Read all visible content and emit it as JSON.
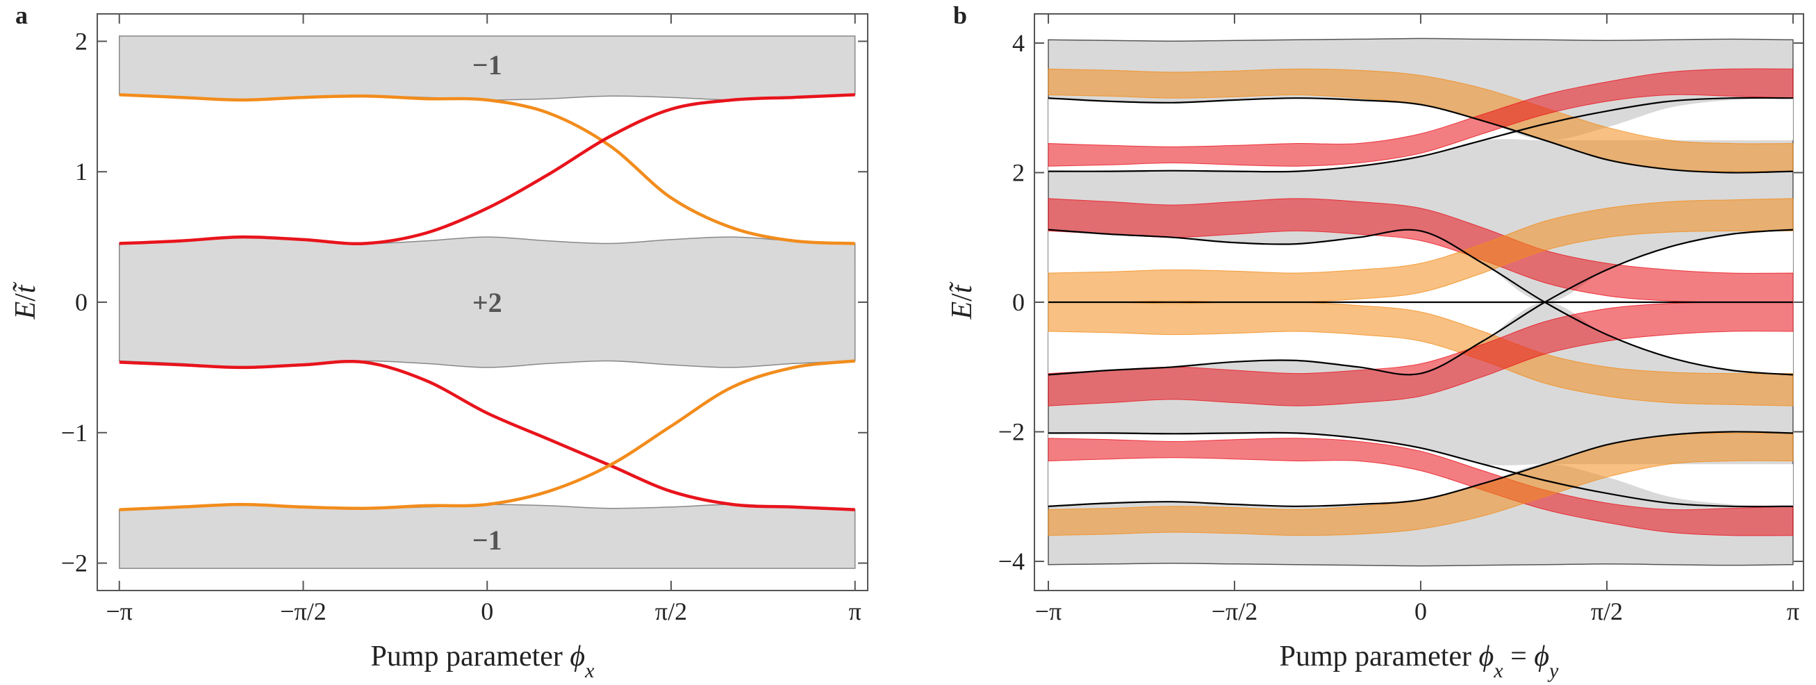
{
  "chart_data": [
    {
      "type": "line",
      "panel_label": "a",
      "x_label": [
        {
          "t": "Pump parameter "
        },
        {
          "t": "ϕ",
          "i": true
        },
        {
          "t": "x",
          "sub": true
        }
      ],
      "y_label": [
        {
          "t": "E",
          "i": true
        },
        {
          "t": "/"
        },
        {
          "t": "t̃",
          "i": true
        }
      ],
      "annotations": [
        "−1",
        "+2",
        "−1"
      ],
      "xlim": [
        -3.33,
        3.25
      ],
      "ylim": [
        -2.21,
        2.21
      ],
      "xticks": [
        {
          "value": -3.1416,
          "label": "−π"
        },
        {
          "value": -1.5708,
          "label": "−π/2"
        },
        0,
        {
          "value": 1.5708,
          "label": "π/2"
        },
        {
          "value": 3.1416,
          "label": "π"
        }
      ],
      "yticks": [
        {
          "value": -2,
          "label": "−2"
        },
        {
          "value": -1,
          "label": "−1"
        },
        0,
        1,
        2
      ],
      "x": [
        -3.1416,
        -2.618,
        -2.0944,
        -1.5708,
        -1.0472,
        -0.5236,
        0,
        0.5236,
        1.0472,
        1.5708,
        2.0944,
        2.618,
        3.1416
      ],
      "bands": [
        {
          "color": "#d9d9d9",
          "upper": [
            2.04,
            2.04,
            2.04,
            2.04,
            2.04,
            2.04,
            2.04,
            2.04,
            2.04,
            2.04,
            2.04,
            2.04,
            2.04
          ],
          "lower": [
            1.59,
            1.57,
            1.55,
            1.57,
            1.58,
            1.57,
            1.55,
            1.56,
            1.58,
            1.57,
            1.55,
            1.57,
            1.59
          ]
        },
        {
          "color": "#d9d9d9",
          "upper": [
            0.45,
            0.47,
            0.5,
            0.48,
            0.45,
            0.47,
            0.5,
            0.47,
            0.45,
            0.48,
            0.5,
            0.47,
            0.45
          ],
          "lower": [
            -0.45,
            -0.47,
            -0.5,
            -0.48,
            -0.45,
            -0.47,
            -0.5,
            -0.47,
            -0.45,
            -0.48,
            -0.5,
            -0.47,
            -0.45
          ]
        },
        {
          "color": "#d9d9d9",
          "upper": [
            -1.59,
            -1.57,
            -1.55,
            -1.57,
            -1.58,
            -1.57,
            -1.55,
            -1.56,
            -1.58,
            -1.57,
            -1.55,
            -1.57,
            -1.59
          ],
          "lower": [
            -2.04,
            -2.04,
            -2.04,
            -2.04,
            -2.04,
            -2.04,
            -2.04,
            -2.04,
            -2.04,
            -2.04,
            -2.04,
            -2.04,
            -2.04
          ]
        }
      ],
      "series": [
        {
          "color": "#f28c1c",
          "values": [
            1.59,
            1.57,
            1.55,
            1.57,
            1.58,
            1.56,
            1.55,
            1.45,
            1.2,
            0.8,
            0.57,
            0.47,
            0.45
          ]
        },
        {
          "color": "#e8141c",
          "values": [
            0.45,
            0.47,
            0.5,
            0.48,
            0.45,
            0.53,
            0.72,
            0.98,
            1.27,
            1.48,
            1.55,
            1.57,
            1.59
          ]
        },
        {
          "color": "#e8141c",
          "values": [
            -0.46,
            -0.48,
            -0.5,
            -0.48,
            -0.46,
            -0.6,
            -0.85,
            -1.05,
            -1.25,
            -1.45,
            -1.55,
            -1.57,
            -1.59
          ]
        },
        {
          "color": "#f28c1c",
          "values": [
            -1.59,
            -1.57,
            -1.55,
            -1.57,
            -1.58,
            -1.56,
            -1.55,
            -1.45,
            -1.25,
            -0.95,
            -0.65,
            -0.5,
            -0.45
          ]
        }
      ]
    },
    {
      "type": "line",
      "panel_label": "b",
      "x_label": [
        {
          "t": "Pump parameter "
        },
        {
          "t": "ϕ",
          "i": true
        },
        {
          "t": "x",
          "sub": true
        },
        {
          "t": " = "
        },
        {
          "t": "ϕ",
          "i": true
        },
        {
          "t": "y",
          "sub": true
        }
      ],
      "y_label": [
        {
          "t": "E",
          "i": true
        },
        {
          "t": "/"
        },
        {
          "t": "t̃",
          "i": true
        }
      ],
      "annotations": [],
      "xlim": [
        -3.259,
        3.23
      ],
      "ylim": [
        -4.45,
        4.45
      ],
      "xticks": [
        {
          "value": -3.1416,
          "label": "−π"
        },
        {
          "value": -1.5708,
          "label": "−π/2"
        },
        0,
        {
          "value": 1.5708,
          "label": "π/2"
        },
        {
          "value": 3.1416,
          "label": "π"
        }
      ],
      "yticks": [
        {
          "value": -4,
          "label": "−4"
        },
        {
          "value": -2,
          "label": "−2"
        },
        0,
        2,
        4
      ],
      "x": [
        -3.1416,
        -2.618,
        -2.0944,
        -1.5708,
        -1.0472,
        -0.5236,
        0,
        0.5236,
        1.0472,
        1.5708,
        2.0944,
        2.618,
        3.1416
      ],
      "bands": [
        {
          "color": "#d9d9d9",
          "upper": [
            4.05,
            4.04,
            4.03,
            4.04,
            4.05,
            4.06,
            4.07,
            4.06,
            4.05,
            4.04,
            4.05,
            4.06,
            4.05
          ],
          "lower": [
            -4.05,
            -4.04,
            -4.03,
            -4.04,
            -4.05,
            -4.06,
            -4.07,
            -4.06,
            -4.05,
            -4.04,
            -4.05,
            -4.06,
            -4.05
          ]
        },
        {
          "color": "#ffffff",
          "upper": [
            3.15,
            3.1,
            3.08,
            3.12,
            3.15,
            3.12,
            3.05,
            2.8,
            2.5,
            2.7,
            3.0,
            3.12,
            3.15
          ],
          "lower": [
            2.02,
            2.02,
            2.03,
            2.02,
            2.02,
            2.1,
            2.25,
            2.5,
            2.5,
            2.5,
            2.5,
            2.5,
            2.5
          ]
        },
        {
          "color": "#ffffff",
          "upper": [
            1.12,
            1.05,
            1.0,
            0.92,
            0.9,
            1.0,
            1.1,
            0.6,
            0,
            0.5,
            0.85,
            1.05,
            1.12
          ],
          "lower": [
            -1.12,
            -1.05,
            -1.0,
            -0.92,
            -0.9,
            -1.0,
            -1.1,
            -0.6,
            0,
            -0.5,
            -0.85,
            -1.05,
            -1.12
          ]
        },
        {
          "color": "#ffffff",
          "upper": [
            -2.02,
            -2.02,
            -2.03,
            -2.02,
            -2.02,
            -2.1,
            -2.25,
            -2.5,
            -2.5,
            -2.5,
            -2.5,
            -2.5,
            -2.5
          ],
          "lower": [
            -3.15,
            -3.1,
            -3.08,
            -3.12,
            -3.15,
            -3.12,
            -3.05,
            -2.8,
            -2.5,
            -2.7,
            -3.0,
            -3.12,
            -3.15
          ]
        },
        {
          "color": "#f28c1c",
          "upper": [
            3.6,
            3.58,
            3.55,
            3.57,
            3.6,
            3.58,
            3.5,
            3.3,
            3.0,
            2.7,
            2.5,
            2.45,
            2.45
          ],
          "lower": [
            3.2,
            3.18,
            3.15,
            3.17,
            3.2,
            3.15,
            3.05,
            2.8,
            2.5,
            2.2,
            2.05,
            2.02,
            2.02
          ]
        },
        {
          "color": "#e8141c",
          "upper": [
            2.45,
            2.42,
            2.4,
            2.42,
            2.45,
            2.45,
            2.6,
            2.9,
            3.2,
            3.4,
            3.55,
            3.6,
            3.6
          ],
          "lower": [
            2.1,
            2.12,
            2.15,
            2.12,
            2.1,
            2.15,
            2.3,
            2.6,
            2.9,
            3.1,
            3.2,
            3.18,
            3.15
          ]
        },
        {
          "color": "#e8141c",
          "upper": [
            1.6,
            1.55,
            1.5,
            1.55,
            1.6,
            1.55,
            1.45,
            1.15,
            0.8,
            0.6,
            0.5,
            0.45,
            0.45
          ],
          "lower": [
            1.1,
            1.05,
            1.0,
            1.05,
            1.1,
            1.05,
            0.95,
            0.65,
            0.3,
            0.1,
            0.02,
            0,
            0
          ]
        },
        {
          "color": "#f28c1c",
          "upper": [
            0.45,
            0.47,
            0.5,
            0.48,
            0.45,
            0.5,
            0.6,
            0.9,
            1.25,
            1.45,
            1.55,
            1.58,
            1.6
          ],
          "lower": [
            0,
            0,
            0.02,
            0,
            0,
            0.05,
            0.15,
            0.45,
            0.8,
            1.0,
            1.08,
            1.1,
            1.1
          ]
        },
        {
          "color": "#f28c1c",
          "upper": [
            0,
            0,
            -0.02,
            0,
            0,
            -0.05,
            -0.15,
            -0.45,
            -0.8,
            -1.0,
            -1.08,
            -1.1,
            -1.1
          ],
          "lower": [
            -0.45,
            -0.47,
            -0.5,
            -0.48,
            -0.45,
            -0.5,
            -0.6,
            -0.9,
            -1.25,
            -1.45,
            -1.55,
            -1.58,
            -1.6
          ]
        },
        {
          "color": "#e8141c",
          "upper": [
            -1.1,
            -1.05,
            -1.0,
            -1.05,
            -1.1,
            -1.05,
            -0.95,
            -0.65,
            -0.3,
            -0.1,
            -0.02,
            0,
            0
          ],
          "lower": [
            -1.6,
            -1.55,
            -1.5,
            -1.55,
            -1.6,
            -1.55,
            -1.45,
            -1.15,
            -0.8,
            -0.6,
            -0.5,
            -0.45,
            -0.45
          ]
        },
        {
          "color": "#e8141c",
          "upper": [
            -2.1,
            -2.12,
            -2.15,
            -2.12,
            -2.1,
            -2.15,
            -2.3,
            -2.6,
            -2.9,
            -3.1,
            -3.2,
            -3.18,
            -3.15
          ],
          "lower": [
            -2.45,
            -2.42,
            -2.4,
            -2.42,
            -2.45,
            -2.45,
            -2.6,
            -2.9,
            -3.2,
            -3.4,
            -3.55,
            -3.6,
            -3.6
          ]
        },
        {
          "color": "#f28c1c",
          "upper": [
            -3.2,
            -3.18,
            -3.15,
            -3.17,
            -3.2,
            -3.15,
            -3.05,
            -2.8,
            -2.5,
            -2.2,
            -2.05,
            -2.02,
            -2.02
          ],
          "lower": [
            -3.6,
            -3.58,
            -3.55,
            -3.57,
            -3.6,
            -3.58,
            -3.5,
            -3.3,
            -3.0,
            -2.7,
            -2.5,
            -2.45,
            -2.45
          ]
        }
      ],
      "series": [
        {
          "color": "#000000",
          "values": [
            3.15,
            3.1,
            3.08,
            3.12,
            3.15,
            3.12,
            3.05,
            2.8,
            2.5,
            2.2,
            2.05,
            2.0,
            2.02
          ]
        },
        {
          "color": "#000000",
          "values": [
            2.02,
            2.02,
            2.03,
            2.02,
            2.02,
            2.1,
            2.25,
            2.5,
            2.75,
            2.95,
            3.1,
            3.15,
            3.15
          ]
        },
        {
          "color": "#000000",
          "values": [
            1.12,
            1.05,
            1.0,
            0.92,
            0.9,
            1.0,
            1.1,
            0.6,
            0,
            -0.5,
            -0.85,
            -1.05,
            -1.12
          ]
        },
        {
          "color": "#000000",
          "values": [
            0,
            0,
            0,
            0,
            0,
            0,
            0,
            0,
            0,
            0,
            0,
            0,
            0
          ]
        },
        {
          "color": "#000000",
          "values": [
            -1.12,
            -1.05,
            -1.0,
            -0.92,
            -0.9,
            -1.0,
            -1.1,
            -0.6,
            0,
            0.5,
            0.85,
            1.05,
            1.12
          ]
        },
        {
          "color": "#000000",
          "values": [
            -2.02,
            -2.02,
            -2.03,
            -2.02,
            -2.02,
            -2.1,
            -2.25,
            -2.5,
            -2.75,
            -2.95,
            -3.1,
            -3.15,
            -3.15
          ]
        },
        {
          "color": "#000000",
          "values": [
            -3.15,
            -3.1,
            -3.08,
            -3.12,
            -3.15,
            -3.12,
            -3.05,
            -2.8,
            -2.5,
            -2.2,
            -2.05,
            -2.0,
            -2.02
          ]
        }
      ]
    }
  ]
}
